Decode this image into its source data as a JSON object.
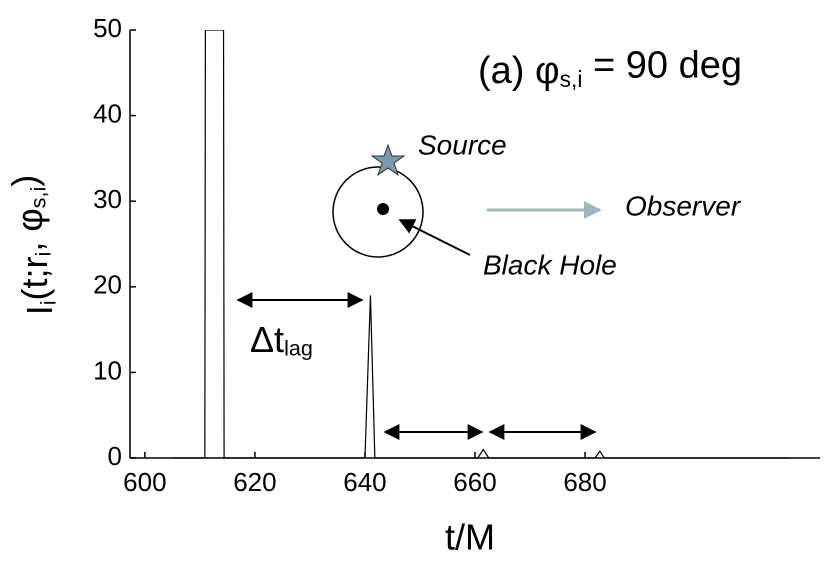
{
  "chart_data": {
    "type": "line",
    "title": [
      "(a) φ",
      "s,i",
      " = 90 deg"
    ],
    "xlabel": "t/M",
    "ylabel": [
      "I",
      "i",
      "(t;r",
      "i",
      ", φ",
      "s,i",
      ")"
    ],
    "x": [
      605,
      610.9,
      611,
      614.3,
      614.4,
      640,
      641,
      641.8,
      660.5,
      661.5,
      662.5,
      681.8,
      682.7,
      683.5,
      717
    ],
    "values": [
      0,
      0,
      50,
      50,
      0,
      0,
      19,
      0,
      0,
      1,
      0,
      0,
      0.8,
      0,
      0
    ],
    "color": "#000000",
    "xlim": [
      597.3,
      722.7
    ],
    "ylim": [
      0,
      50
    ],
    "xticks": [
      600,
      620,
      640,
      660,
      680
    ],
    "yticks": [
      0,
      10,
      20,
      30,
      40,
      50
    ],
    "annotations": {
      "lag": [
        "Δt",
        "lag"
      ],
      "source": "Source",
      "observer": "Observer",
      "black_hole": "Black Hole"
    }
  }
}
